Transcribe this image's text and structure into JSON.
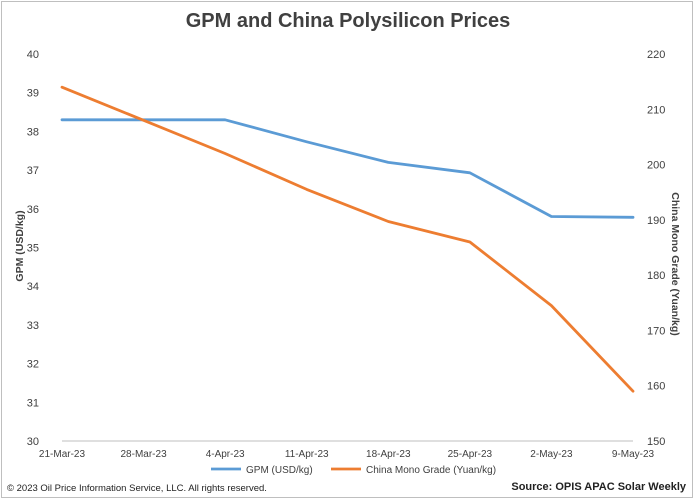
{
  "page": {
    "title": "GPM and China Polysilicon Prices",
    "copyright": "© 2023 Oil Price Information Service, LLC. All rights reserved.",
    "source": "Source: OPIS APAC Solar Weekly"
  },
  "colors": {
    "gpm": "#5b9bd5",
    "china": "#ed7d31",
    "grid": "#d9d9d9",
    "text": "#404040"
  },
  "chart_data": {
    "type": "line",
    "title": "GPM and China Polysilicon Prices",
    "categories": [
      "21-Mar-23",
      "28-Mar-23",
      "4-Apr-23",
      "11-Apr-23",
      "18-Apr-23",
      "25-Apr-23",
      "2-May-23",
      "9-May-23"
    ],
    "ylabel_left": "GPM (USD/kg)",
    "ylabel_right": "China Mono Grade (Yuan/kg)",
    "ylim_left": [
      30,
      40
    ],
    "yticks_left": [
      "30",
      "31",
      "32",
      "33",
      "34",
      "35",
      "36",
      "37",
      "38",
      "39",
      "40"
    ],
    "ylim_right": [
      150,
      220
    ],
    "yticks_right": [
      "150",
      "160",
      "170",
      "180",
      "190",
      "200",
      "210",
      "220"
    ],
    "grid": false,
    "legend": "bottom",
    "series": [
      {
        "name": "GPM (USD/kg)",
        "axis": "left",
        "values": [
          38.3,
          38.3,
          38.3,
          37.73,
          37.2,
          36.93,
          35.8,
          35.78
        ]
      },
      {
        "name": "China Mono Grade (Yuan/kg)",
        "axis": "right",
        "values": [
          214,
          208,
          202,
          195.5,
          189.7,
          186,
          174.5,
          159
        ]
      }
    ]
  }
}
